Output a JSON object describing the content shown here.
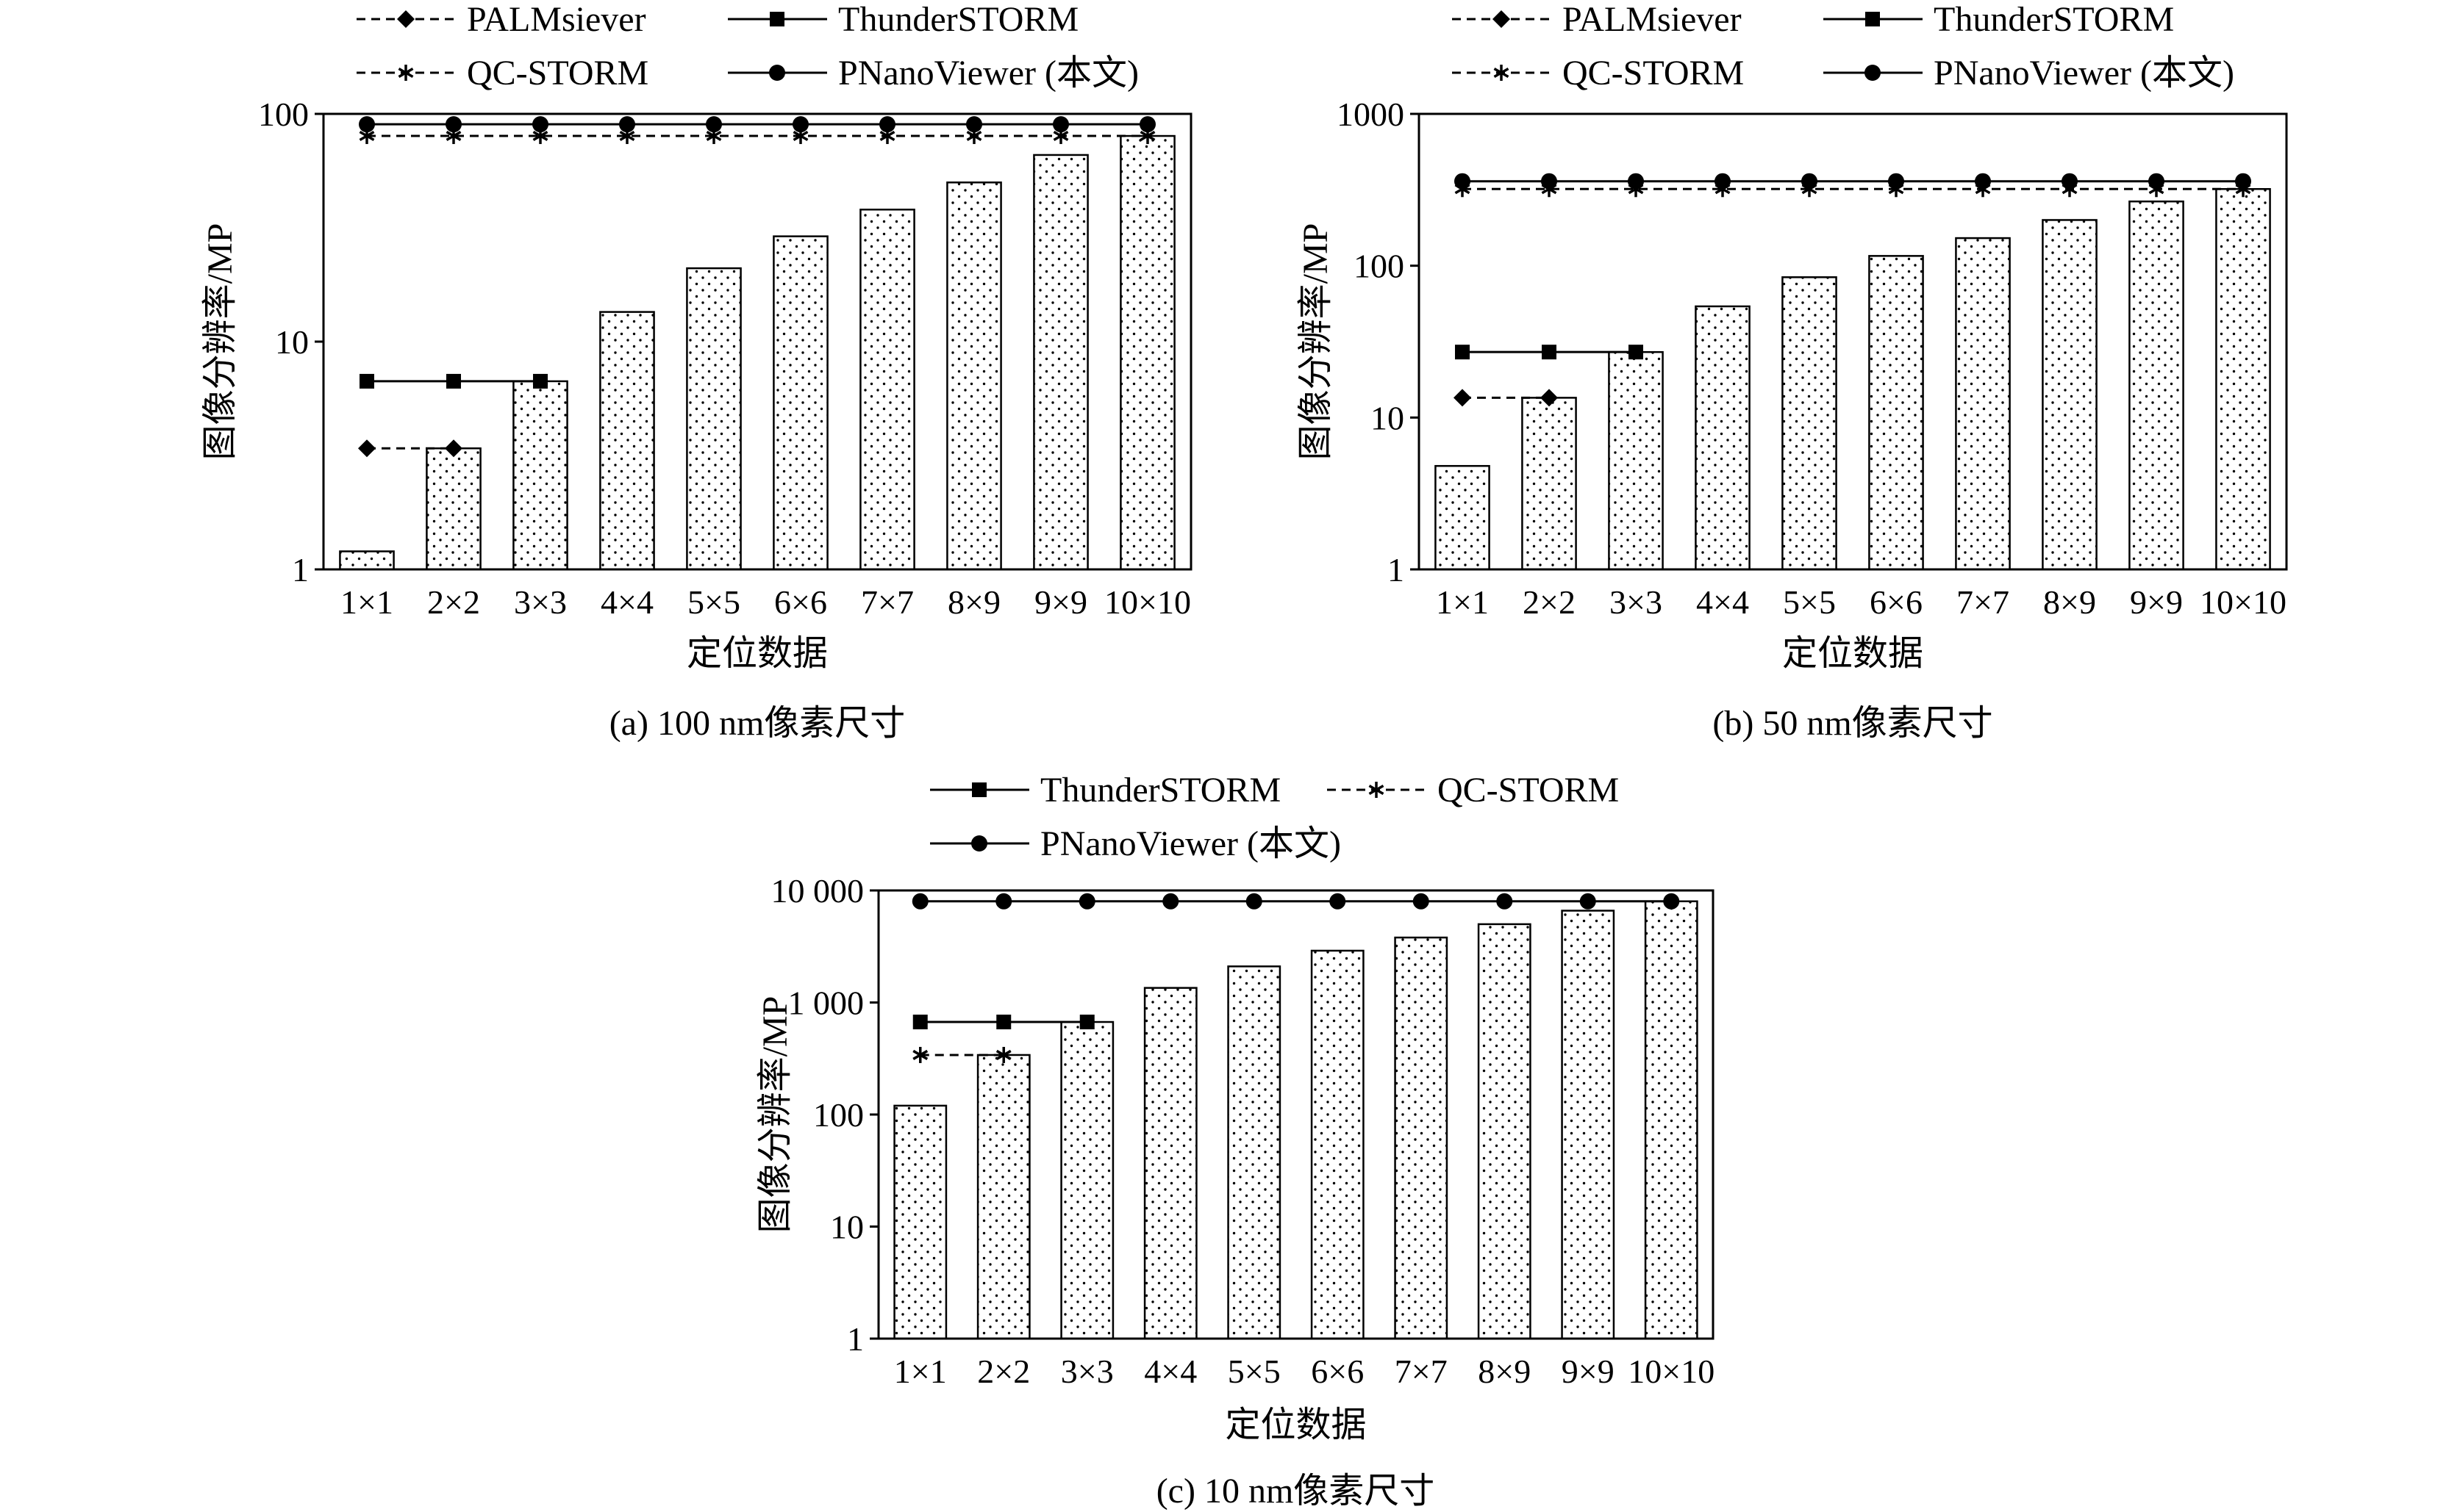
{
  "chart_data": [
    {
      "id": "a",
      "type": "bar",
      "scale": "log",
      "caption": "(a)  100 nm像素尺寸",
      "xlabel": "定位数据",
      "ylabel": "图像分辨率/MP",
      "ylim": [
        1,
        100
      ],
      "yticks": [
        {
          "value": 1,
          "label": "1"
        },
        {
          "value": 10,
          "label": "10"
        },
        {
          "value": 100,
          "label": "100"
        }
      ],
      "categories": [
        "1×1",
        "2×2",
        "3×3",
        "4×4",
        "5×5",
        "6×6",
        "7×7",
        "8×9",
        "9×9",
        "10×10"
      ],
      "values": [
        1.2,
        3.4,
        6.7,
        13.5,
        21,
        29,
        38,
        50,
        66,
        80
      ],
      "legend": [
        {
          "name": "PALMsiever",
          "style": "dashed",
          "marker": "diamond"
        },
        {
          "name": "ThunderSTORM",
          "style": "solid",
          "marker": "square"
        },
        {
          "name": "QC-STORM",
          "style": "dashed",
          "marker": "asterisk"
        },
        {
          "name": "PNanoViewer (本文)",
          "style": "solid",
          "marker": "circle"
        }
      ],
      "series": [
        {
          "name": "PALMsiever",
          "style": "dashed",
          "marker": "diamond",
          "values": [
            3.4,
            3.4,
            null,
            null,
            null,
            null,
            null,
            null,
            null,
            null
          ]
        },
        {
          "name": "ThunderSTORM",
          "style": "solid",
          "marker": "square",
          "values": [
            6.7,
            6.7,
            6.7,
            null,
            null,
            null,
            null,
            null,
            null,
            null
          ]
        },
        {
          "name": "QC-STORM",
          "style": "dashed",
          "marker": "asterisk",
          "values": [
            80,
            80,
            80,
            80,
            80,
            80,
            80,
            80,
            80,
            80
          ]
        },
        {
          "name": "PNanoViewer (本文)",
          "style": "solid",
          "marker": "circle",
          "values": [
            90,
            90,
            90,
            90,
            90,
            90,
            90,
            90,
            90,
            90
          ]
        }
      ]
    },
    {
      "id": "b",
      "type": "bar",
      "scale": "log",
      "caption": "(b)  50 nm像素尺寸",
      "xlabel": "定位数据",
      "ylabel": "图像分辨率/MP",
      "ylim": [
        1,
        1000
      ],
      "yticks": [
        {
          "value": 1,
          "label": "1"
        },
        {
          "value": 10,
          "label": "10"
        },
        {
          "value": 100,
          "label": "100"
        },
        {
          "value": 1000,
          "label": "1000"
        }
      ],
      "categories": [
        "1×1",
        "2×2",
        "3×3",
        "4×4",
        "5×5",
        "6×6",
        "7×7",
        "8×9",
        "9×9",
        "10×10"
      ],
      "values": [
        4.8,
        13.5,
        27,
        54,
        84,
        116,
        152,
        200,
        265,
        320
      ],
      "legend": [
        {
          "name": "PALMsiever",
          "style": "dashed",
          "marker": "diamond"
        },
        {
          "name": "ThunderSTORM",
          "style": "solid",
          "marker": "square"
        },
        {
          "name": "QC-STORM",
          "style": "dashed",
          "marker": "asterisk"
        },
        {
          "name": "PNanoViewer (本文)",
          "style": "solid",
          "marker": "circle"
        }
      ],
      "series": [
        {
          "name": "PALMsiever",
          "style": "dashed",
          "marker": "diamond",
          "values": [
            13.5,
            13.5,
            null,
            null,
            null,
            null,
            null,
            null,
            null,
            null
          ]
        },
        {
          "name": "ThunderSTORM",
          "style": "solid",
          "marker": "square",
          "values": [
            27,
            27,
            27,
            null,
            null,
            null,
            null,
            null,
            null,
            null
          ]
        },
        {
          "name": "QC-STORM",
          "style": "dashed",
          "marker": "asterisk",
          "values": [
            320,
            320,
            320,
            320,
            320,
            320,
            320,
            320,
            320,
            320
          ]
        },
        {
          "name": "PNanoViewer (本文)",
          "style": "solid",
          "marker": "circle",
          "values": [
            360,
            360,
            360,
            360,
            360,
            360,
            360,
            360,
            360,
            360
          ]
        }
      ]
    },
    {
      "id": "c",
      "type": "bar",
      "scale": "log",
      "caption": "(c)  10 nm像素尺寸",
      "xlabel": "定位数据",
      "ylabel": "图像分辨率/MP",
      "ylim": [
        1,
        10000
      ],
      "yticks": [
        {
          "value": 1,
          "label": "1"
        },
        {
          "value": 10,
          "label": "10"
        },
        {
          "value": 100,
          "label": "100"
        },
        {
          "value": 1000,
          "label": "1 000"
        },
        {
          "value": 10000,
          "label": "10 000"
        }
      ],
      "categories": [
        "1×1",
        "2×2",
        "3×3",
        "4×4",
        "5×5",
        "6×6",
        "7×7",
        "8×9",
        "9×9",
        "10×10"
      ],
      "values": [
        120,
        340,
        670,
        1350,
        2100,
        2900,
        3800,
        5000,
        6600,
        8000
      ],
      "legend": [
        {
          "name": "ThunderSTORM",
          "style": "solid",
          "marker": "square"
        },
        {
          "name": "QC-STORM",
          "style": "dashed",
          "marker": "asterisk"
        },
        {
          "name": "PNanoViewer (本文)",
          "style": "solid",
          "marker": "circle"
        }
      ],
      "series": [
        {
          "name": "ThunderSTORM",
          "style": "solid",
          "marker": "square",
          "values": [
            670,
            670,
            670,
            null,
            null,
            null,
            null,
            null,
            null,
            null
          ]
        },
        {
          "name": "QC-STORM",
          "style": "dashed",
          "marker": "asterisk",
          "values": [
            340,
            340,
            null,
            null,
            null,
            null,
            null,
            null,
            null,
            null
          ]
        },
        {
          "name": "PNanoViewer (本文)",
          "style": "solid",
          "marker": "circle",
          "values": [
            8000,
            8000,
            8000,
            8000,
            8000,
            8000,
            8000,
            8000,
            8000,
            8000
          ]
        }
      ]
    }
  ]
}
